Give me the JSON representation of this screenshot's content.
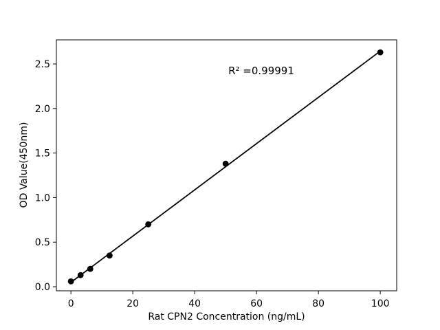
{
  "chart_data": {
    "type": "scatter",
    "xlabel": "Rat CPN2 Concentration (ng/mL)",
    "ylabel": "OD Value(450nm)",
    "annotation": "R² =0.99991",
    "r_squared": 0.99991,
    "x": [
      0,
      3.125,
      6.25,
      12.5,
      25,
      50,
      100
    ],
    "y": [
      0.06,
      0.13,
      0.2,
      0.35,
      0.7,
      1.38,
      2.63
    ],
    "fit_line": true,
    "marker": "circle",
    "xlim": [
      -4.7,
      105.3
    ],
    "ylim": [
      -0.046,
      2.77
    ],
    "xticks": {
      "values": [
        0,
        20,
        40,
        60,
        80,
        100
      ],
      "labels": [
        "0",
        "20",
        "40",
        "60",
        "80",
        "100"
      ]
    },
    "yticks": {
      "values": [
        0,
        0.5,
        1,
        1.5,
        2,
        2.5
      ],
      "labels": [
        "0.0",
        "0.5",
        "1.0",
        "1.5",
        "2.0",
        "2.5"
      ]
    },
    "grid": false,
    "legend": false,
    "colors": {
      "line": "#000000",
      "marker": "#000000",
      "text": "#000000",
      "spine": "#000000",
      "background": "#ffffff"
    }
  }
}
